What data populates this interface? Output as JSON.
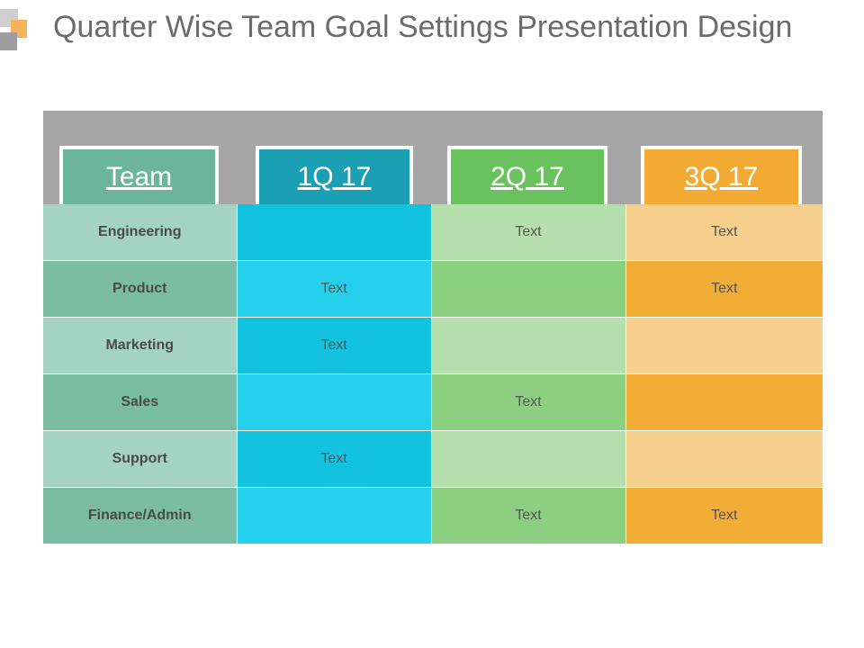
{
  "title": "Quarter Wise Team Goal Settings Presentation Design",
  "colors": {
    "team": "#6cb59c",
    "q1": "#1a9fb5",
    "q2": "#69c25d",
    "q3": "#f2aa32",
    "band": "#a6a6a6"
  },
  "headers": [
    "Team",
    "1Q 17",
    "2Q 17",
    "3Q 17"
  ],
  "rows": [
    {
      "team": "Engineering",
      "q1": "",
      "q2": "Text",
      "q3": "Text"
    },
    {
      "team": "Product",
      "q1": "Text",
      "q2": "",
      "q3": "Text"
    },
    {
      "team": "Marketing",
      "q1": "Text",
      "q2": "",
      "q3": ""
    },
    {
      "team": "Sales",
      "q1": "",
      "q2": "Text",
      "q3": ""
    },
    {
      "team": "Support",
      "q1": "Text",
      "q2": "",
      "q3": ""
    },
    {
      "team": "Finance/Admin",
      "q1": "",
      "q2": "Text",
      "q3": "Text"
    }
  ]
}
